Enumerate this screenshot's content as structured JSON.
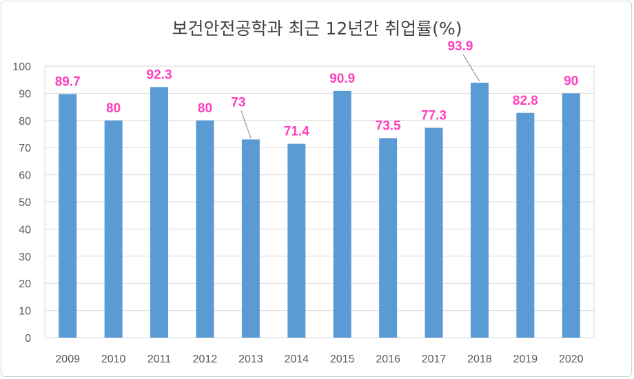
{
  "chart_data": {
    "type": "bar",
    "title": "보건안전공학과 최근 12년간 취업률(%)",
    "categories": [
      "2009",
      "2010",
      "2011",
      "2012",
      "2013",
      "2014",
      "2015",
      "2016",
      "2017",
      "2018",
      "2019",
      "2020"
    ],
    "values": [
      89.7,
      80,
      92.3,
      80,
      73,
      71.4,
      90.9,
      73.5,
      77.3,
      93.9,
      82.8,
      90
    ],
    "data_labels": [
      "89.7",
      "80",
      "92.3",
      "80",
      "73",
      "71.4",
      "90.9",
      "73.5",
      "77.3",
      "93.9",
      "82.8",
      "90"
    ],
    "ylim": [
      0,
      100
    ],
    "yticks": [
      "0",
      "10",
      "20",
      "30",
      "40",
      "50",
      "60",
      "70",
      "80",
      "90",
      "100"
    ],
    "grid": true,
    "legend": "none",
    "colors": {
      "bar": "#5b9bd5",
      "label": "#ff3fbf",
      "grid": "#d9d9d9"
    }
  }
}
